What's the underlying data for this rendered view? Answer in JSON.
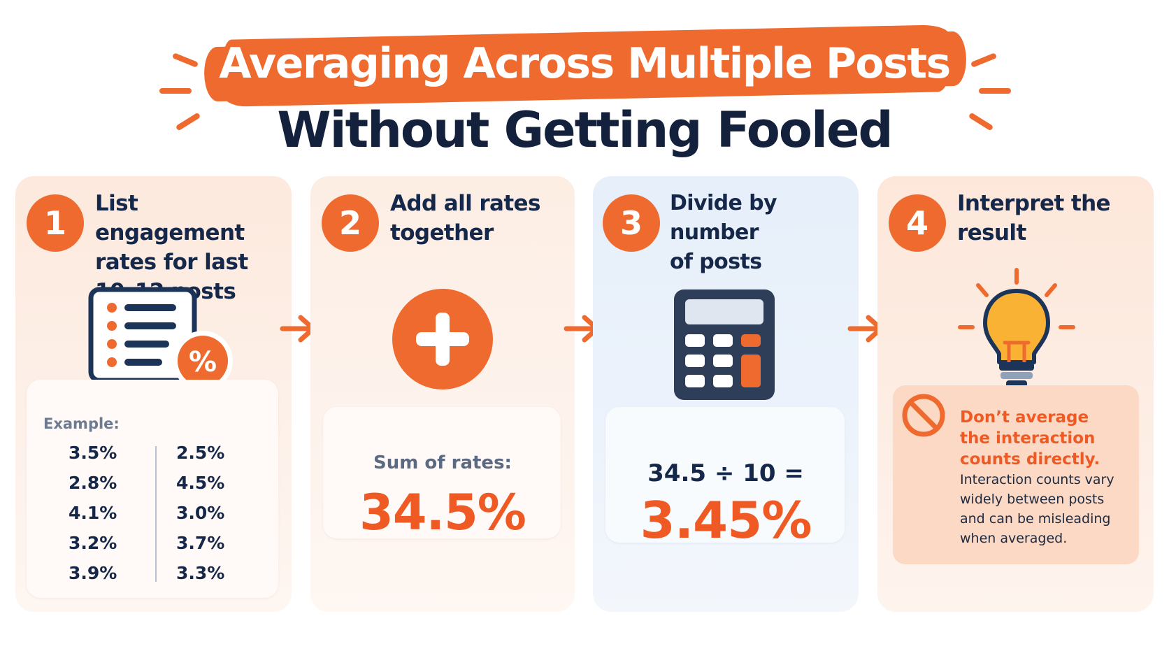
{
  "header": {
    "title_line1": "Averaging Across Multiple Posts",
    "title_line2": "Without Getting Fooled"
  },
  "steps": [
    {
      "number": "1",
      "title": "List engagement\nrates for last\n10–12 posts",
      "icon": "list-percent-icon"
    },
    {
      "number": "2",
      "title": "Add all rates\ntogether",
      "icon": "plus-icon"
    },
    {
      "number": "3",
      "title": "Divide by number\nof posts",
      "icon": "calculator-icon"
    },
    {
      "number": "4",
      "title": "Interpret the\nresult",
      "icon": "lightbulb-icon"
    }
  ],
  "example": {
    "label": "Example:",
    "left_column": [
      "3.5%",
      "2.8%",
      "4.1%",
      "3.2%",
      "3.9%"
    ],
    "right_column": [
      "2.5%",
      "4.5%",
      "3.0%",
      "3.7%",
      "3.3%"
    ]
  },
  "sum": {
    "label": "Sum of rates:",
    "value": "34.5%"
  },
  "division": {
    "expression": "34.5 ÷ 10 =",
    "result": "3.45%"
  },
  "warning": {
    "icon": "prohibited-icon",
    "title": "Don’t average\nthe interaction\ncounts directly.",
    "body": "Interaction counts vary\nwidely between posts\nand can be misleading\nwhen averaged."
  },
  "colors": {
    "accent": "#ef6a2e",
    "accent_text": "#ef5a24",
    "navy": "#16284a",
    "card_peach": "#fdeee4",
    "card_blue": "#e6effa",
    "warning_bg": "#fbd9c4"
  }
}
